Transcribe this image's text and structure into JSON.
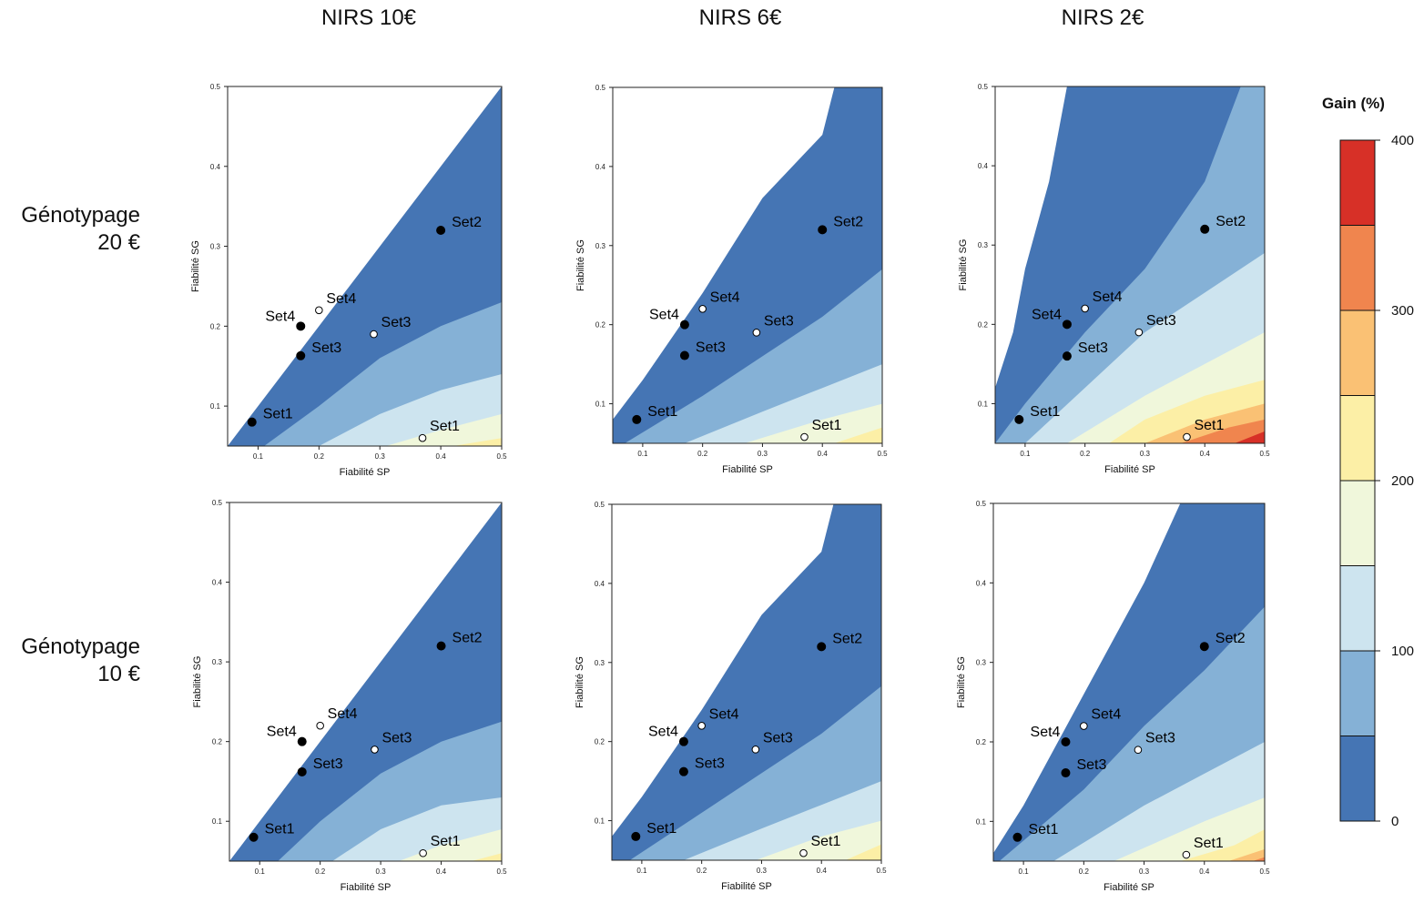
{
  "columns": [
    "NIRS 10€",
    "NIRS 6€",
    "NIRS 2€"
  ],
  "rows": [
    {
      "line1": "Génotypage",
      "line2": "20 €"
    },
    {
      "line1": "Génotypage",
      "line2": "10 €"
    }
  ],
  "legend": {
    "title": "Gain (%)",
    "ticks": [
      "0",
      "100",
      "200",
      "300",
      "400"
    ],
    "colors": [
      "#4575b4",
      "#85b1d6",
      "#cde4ef",
      "#f0f7db",
      "#fcefa6",
      "#fac174",
      "#f0854e",
      "#d73027"
    ],
    "breaks": [
      0,
      50,
      100,
      150,
      200,
      250,
      300,
      350,
      400
    ]
  },
  "chart_data": [
    {
      "type": "contour",
      "row": 0,
      "col": 0,
      "xlabel": "Fiabilité SP",
      "ylabel": "Fiabilité SG",
      "xlim": [
        0.05,
        0.5
      ],
      "ylim": [
        0.05,
        0.5
      ],
      "xticks": [
        "0.1",
        "0.2",
        "0.3",
        "0.4",
        "0.5"
      ],
      "yticks": [
        "0.1",
        "0.2",
        "0.3",
        "0.4",
        "0.5"
      ],
      "boundary": [
        [
          0.05,
          0.05
        ],
        [
          0.3,
          0.3
        ],
        [
          0.5,
          0.5
        ]
      ],
      "contours": [
        [
          [
            0.11,
            0.05
          ],
          [
            0.2,
            0.1
          ],
          [
            0.3,
            0.16
          ],
          [
            0.4,
            0.2
          ],
          [
            0.5,
            0.23
          ]
        ],
        [
          [
            0.2,
            0.05
          ],
          [
            0.3,
            0.09
          ],
          [
            0.4,
            0.12
          ],
          [
            0.5,
            0.14
          ]
        ],
        [
          [
            0.31,
            0.05
          ],
          [
            0.4,
            0.07
          ],
          [
            0.5,
            0.09
          ]
        ],
        [
          [
            0.42,
            0.05
          ],
          [
            0.5,
            0.06
          ]
        ]
      ],
      "points": [
        {
          "label": "Set1",
          "x": 0.09,
          "y": 0.08,
          "filled": true
        },
        {
          "label": "Set2",
          "x": 0.4,
          "y": 0.32,
          "filled": true
        },
        {
          "label": "Set3",
          "x": 0.17,
          "y": 0.163,
          "filled": true
        },
        {
          "label": "Set4",
          "x": 0.17,
          "y": 0.2,
          "filled": true
        },
        {
          "label": "Set1",
          "x": 0.37,
          "y": 0.06,
          "filled": false
        },
        {
          "label": "Set3",
          "x": 0.29,
          "y": 0.19,
          "filled": false
        },
        {
          "label": "Set4",
          "x": 0.2,
          "y": 0.22,
          "filled": false
        }
      ]
    },
    {
      "type": "contour",
      "row": 0,
      "col": 1,
      "xlabel": "Fiabilité SP",
      "ylabel": "Fiabilité SG",
      "xlim": [
        0.05,
        0.5
      ],
      "ylim": [
        0.05,
        0.5
      ],
      "xticks": [
        "0.1",
        "0.2",
        "0.3",
        "0.4",
        "0.5"
      ],
      "yticks": [
        "0.1",
        "0.2",
        "0.3",
        "0.4",
        "0.5"
      ],
      "boundary": [
        [
          0.05,
          0.08
        ],
        [
          0.1,
          0.13
        ],
        [
          0.2,
          0.24
        ],
        [
          0.3,
          0.36
        ],
        [
          0.4,
          0.44
        ],
        [
          0.42,
          0.5
        ]
      ],
      "contours": [
        [
          [
            0.07,
            0.05
          ],
          [
            0.2,
            0.11
          ],
          [
            0.3,
            0.16
          ],
          [
            0.4,
            0.21
          ],
          [
            0.5,
            0.27
          ]
        ],
        [
          [
            0.17,
            0.05
          ],
          [
            0.3,
            0.09
          ],
          [
            0.4,
            0.12
          ],
          [
            0.5,
            0.15
          ]
        ],
        [
          [
            0.27,
            0.05
          ],
          [
            0.4,
            0.08
          ],
          [
            0.5,
            0.1
          ]
        ],
        [
          [
            0.42,
            0.05
          ],
          [
            0.5,
            0.07
          ]
        ]
      ],
      "points": [
        {
          "label": "Set1",
          "x": 0.09,
          "y": 0.08,
          "filled": true
        },
        {
          "label": "Set2",
          "x": 0.4,
          "y": 0.32,
          "filled": true
        },
        {
          "label": "Set3",
          "x": 0.17,
          "y": 0.161,
          "filled": true
        },
        {
          "label": "Set4",
          "x": 0.17,
          "y": 0.2,
          "filled": true
        },
        {
          "label": "Set1",
          "x": 0.37,
          "y": 0.058,
          "filled": false
        },
        {
          "label": "Set3",
          "x": 0.29,
          "y": 0.19,
          "filled": false
        },
        {
          "label": "Set4",
          "x": 0.2,
          "y": 0.22,
          "filled": false
        }
      ]
    },
    {
      "type": "contour",
      "row": 0,
      "col": 2,
      "xlabel": "Fiabilité SP",
      "ylabel": "Fiabilité SG",
      "xlim": [
        0.05,
        0.5
      ],
      "ylim": [
        0.05,
        0.5
      ],
      "xticks": [
        "0.1",
        "0.2",
        "0.3",
        "0.4",
        "0.5"
      ],
      "yticks": [
        "0.1",
        "0.2",
        "0.3",
        "0.4",
        "0.5"
      ],
      "boundary": [
        [
          0.05,
          0.12
        ],
        [
          0.08,
          0.19
        ],
        [
          0.1,
          0.27
        ],
        [
          0.14,
          0.38
        ],
        [
          0.17,
          0.5
        ]
      ],
      "contours": [
        [
          [
            0.05,
            0.05
          ],
          [
            0.1,
            0.1
          ],
          [
            0.2,
            0.19
          ],
          [
            0.3,
            0.27
          ],
          [
            0.4,
            0.38
          ],
          [
            0.46,
            0.5
          ]
        ],
        [
          [
            0.1,
            0.05
          ],
          [
            0.2,
            0.12
          ],
          [
            0.3,
            0.19
          ],
          [
            0.4,
            0.24
          ],
          [
            0.5,
            0.29
          ]
        ],
        [
          [
            0.17,
            0.05
          ],
          [
            0.3,
            0.11
          ],
          [
            0.4,
            0.15
          ],
          [
            0.5,
            0.19
          ]
        ],
        [
          [
            0.24,
            0.05
          ],
          [
            0.3,
            0.08
          ],
          [
            0.4,
            0.11
          ],
          [
            0.5,
            0.13
          ]
        ],
        [
          [
            0.3,
            0.05
          ],
          [
            0.4,
            0.08
          ],
          [
            0.5,
            0.1
          ]
        ],
        [
          [
            0.36,
            0.05
          ],
          [
            0.44,
            0.07
          ],
          [
            0.5,
            0.08
          ]
        ],
        [
          [
            0.45,
            0.05
          ],
          [
            0.5,
            0.065
          ]
        ]
      ],
      "points": [
        {
          "label": "Set1",
          "x": 0.09,
          "y": 0.08,
          "filled": true
        },
        {
          "label": "Set2",
          "x": 0.4,
          "y": 0.32,
          "filled": true
        },
        {
          "label": "Set3",
          "x": 0.17,
          "y": 0.16,
          "filled": true
        },
        {
          "label": "Set4",
          "x": 0.17,
          "y": 0.2,
          "filled": true
        },
        {
          "label": "Set1",
          "x": 0.37,
          "y": 0.058,
          "filled": false
        },
        {
          "label": "Set3",
          "x": 0.29,
          "y": 0.19,
          "filled": false
        },
        {
          "label": "Set4",
          "x": 0.2,
          "y": 0.22,
          "filled": false
        }
      ]
    },
    {
      "type": "contour",
      "row": 1,
      "col": 0,
      "xlabel": "Fiabilité SP",
      "ylabel": "Fiabilité SG",
      "xlim": [
        0.05,
        0.5
      ],
      "ylim": [
        0.05,
        0.5
      ],
      "xticks": [
        "0.1",
        "0.2",
        "0.3",
        "0.4",
        "0.5"
      ],
      "yticks": [
        "0.1",
        "0.2",
        "0.3",
        "0.4",
        "0.5"
      ],
      "boundary": [
        [
          0.05,
          0.05
        ],
        [
          0.3,
          0.3
        ],
        [
          0.5,
          0.5
        ]
      ],
      "contours": [
        [
          [
            0.13,
            0.05
          ],
          [
            0.2,
            0.1
          ],
          [
            0.3,
            0.16
          ],
          [
            0.4,
            0.2
          ],
          [
            0.5,
            0.225
          ]
        ],
        [
          [
            0.22,
            0.05
          ],
          [
            0.3,
            0.09
          ],
          [
            0.4,
            0.12
          ],
          [
            0.5,
            0.13
          ]
        ],
        [
          [
            0.33,
            0.05
          ],
          [
            0.4,
            0.07
          ],
          [
            0.5,
            0.09
          ]
        ],
        [
          [
            0.45,
            0.05
          ],
          [
            0.5,
            0.06
          ]
        ]
      ],
      "points": [
        {
          "label": "Set1",
          "x": 0.09,
          "y": 0.08,
          "filled": true
        },
        {
          "label": "Set2",
          "x": 0.4,
          "y": 0.32,
          "filled": true
        },
        {
          "label": "Set3",
          "x": 0.17,
          "y": 0.162,
          "filled": true
        },
        {
          "label": "Set4",
          "x": 0.17,
          "y": 0.2,
          "filled": true
        },
        {
          "label": "Set1",
          "x": 0.37,
          "y": 0.06,
          "filled": false
        },
        {
          "label": "Set3",
          "x": 0.29,
          "y": 0.19,
          "filled": false
        },
        {
          "label": "Set4",
          "x": 0.2,
          "y": 0.22,
          "filled": false
        }
      ]
    },
    {
      "type": "contour",
      "row": 1,
      "col": 1,
      "xlabel": "Fiabilité SP",
      "ylabel": "Fiabilité SG",
      "xlim": [
        0.05,
        0.5
      ],
      "ylim": [
        0.05,
        0.5
      ],
      "xticks": [
        "0.1",
        "0.2",
        "0.3",
        "0.4",
        "0.5"
      ],
      "yticks": [
        "0.1",
        "0.2",
        "0.3",
        "0.4",
        "0.5"
      ],
      "boundary": [
        [
          0.05,
          0.08
        ],
        [
          0.1,
          0.13
        ],
        [
          0.2,
          0.24
        ],
        [
          0.3,
          0.36
        ],
        [
          0.4,
          0.44
        ],
        [
          0.42,
          0.5
        ]
      ],
      "contours": [
        [
          [
            0.08,
            0.05
          ],
          [
            0.2,
            0.11
          ],
          [
            0.3,
            0.16
          ],
          [
            0.4,
            0.21
          ],
          [
            0.5,
            0.27
          ]
        ],
        [
          [
            0.17,
            0.05
          ],
          [
            0.3,
            0.09
          ],
          [
            0.4,
            0.12
          ],
          [
            0.5,
            0.15
          ]
        ],
        [
          [
            0.29,
            0.05
          ],
          [
            0.4,
            0.08
          ],
          [
            0.5,
            0.1
          ]
        ],
        [
          [
            0.44,
            0.05
          ],
          [
            0.5,
            0.07
          ]
        ]
      ],
      "points": [
        {
          "label": "Set1",
          "x": 0.09,
          "y": 0.08,
          "filled": true
        },
        {
          "label": "Set2",
          "x": 0.4,
          "y": 0.32,
          "filled": true
        },
        {
          "label": "Set3",
          "x": 0.17,
          "y": 0.162,
          "filled": true
        },
        {
          "label": "Set4",
          "x": 0.17,
          "y": 0.2,
          "filled": true
        },
        {
          "label": "Set1",
          "x": 0.37,
          "y": 0.059,
          "filled": false
        },
        {
          "label": "Set3",
          "x": 0.29,
          "y": 0.19,
          "filled": false
        },
        {
          "label": "Set4",
          "x": 0.2,
          "y": 0.22,
          "filled": false
        }
      ]
    },
    {
      "type": "contour",
      "row": 1,
      "col": 2,
      "xlabel": "Fiabilité SP",
      "ylabel": "Fiabilité SG",
      "xlim": [
        0.05,
        0.5
      ],
      "ylim": [
        0.05,
        0.5
      ],
      "xticks": [
        "0.1",
        "0.2",
        "0.3",
        "0.4",
        "0.5"
      ],
      "yticks": [
        "0.1",
        "0.2",
        "0.3",
        "0.4",
        "0.5"
      ],
      "boundary": [
        [
          0.05,
          0.06
        ],
        [
          0.1,
          0.12
        ],
        [
          0.2,
          0.26
        ],
        [
          0.3,
          0.4
        ],
        [
          0.36,
          0.5
        ]
      ],
      "contours": [
        [
          [
            0.06,
            0.05
          ],
          [
            0.2,
            0.14
          ],
          [
            0.3,
            0.22
          ],
          [
            0.4,
            0.29
          ],
          [
            0.5,
            0.37
          ]
        ],
        [
          [
            0.15,
            0.05
          ],
          [
            0.3,
            0.12
          ],
          [
            0.4,
            0.16
          ],
          [
            0.5,
            0.2
          ]
        ],
        [
          [
            0.25,
            0.05
          ],
          [
            0.4,
            0.1
          ],
          [
            0.5,
            0.13
          ]
        ],
        [
          [
            0.36,
            0.05
          ],
          [
            0.45,
            0.07
          ],
          [
            0.5,
            0.09
          ]
        ],
        [
          [
            0.44,
            0.05
          ],
          [
            0.5,
            0.065
          ]
        ],
        [
          [
            0.48,
            0.05
          ],
          [
            0.5,
            0.055
          ]
        ]
      ],
      "points": [
        {
          "label": "Set1",
          "x": 0.09,
          "y": 0.08,
          "filled": true
        },
        {
          "label": "Set2",
          "x": 0.4,
          "y": 0.32,
          "filled": true
        },
        {
          "label": "Set3",
          "x": 0.17,
          "y": 0.161,
          "filled": true
        },
        {
          "label": "Set4",
          "x": 0.17,
          "y": 0.2,
          "filled": true
        },
        {
          "label": "Set1",
          "x": 0.37,
          "y": 0.058,
          "filled": false
        },
        {
          "label": "Set3",
          "x": 0.29,
          "y": 0.19,
          "filled": false
        },
        {
          "label": "Set4",
          "x": 0.2,
          "y": 0.22,
          "filled": false
        }
      ]
    }
  ]
}
